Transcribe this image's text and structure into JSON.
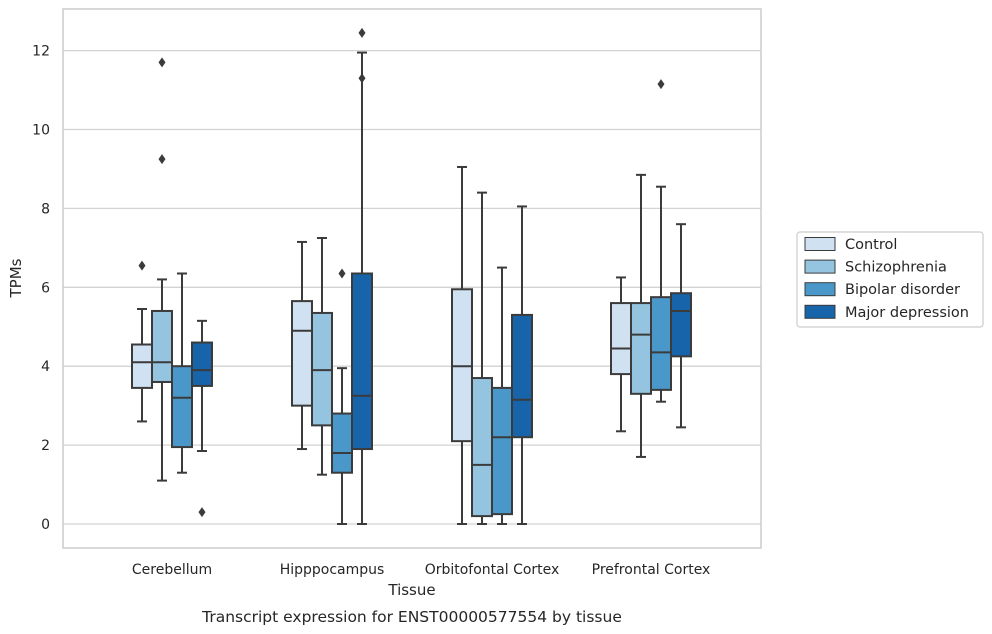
{
  "chart_data": {
    "type": "boxplot",
    "xlabel": "Tissue",
    "ylabel": "TPMs",
    "caption": "Transcript expression for ENST00000577554 by tissue",
    "ylim": [
      -0.6,
      13.0
    ],
    "yticks": [
      0,
      2,
      4,
      6,
      8,
      10,
      12
    ],
    "grid": true,
    "legend_position": "right",
    "categories": [
      "Cerebellum",
      "Hipppocampus",
      "Orbitofontal Cortex",
      "Prefrontal Cortex"
    ],
    "series": [
      {
        "name": "Control",
        "color": "#d0e1f2",
        "boxes": [
          {
            "whisker_low": 2.6,
            "q1": 3.45,
            "median": 4.1,
            "q3": 4.55,
            "whisker_high": 5.45,
            "outliers": [
              6.55
            ]
          },
          {
            "whisker_low": 1.9,
            "q1": 3.0,
            "median": 4.9,
            "q3": 5.65,
            "whisker_high": 7.15,
            "outliers": []
          },
          {
            "whisker_low": 0.0,
            "q1": 2.1,
            "median": 4.0,
            "q3": 5.95,
            "whisker_high": 9.05,
            "outliers": []
          },
          {
            "whisker_low": 2.35,
            "q1": 3.8,
            "median": 4.45,
            "q3": 5.6,
            "whisker_high": 6.25,
            "outliers": []
          }
        ]
      },
      {
        "name": "Schizophrenia",
        "color": "#94c4df",
        "boxes": [
          {
            "whisker_low": 1.1,
            "q1": 3.6,
            "median": 4.1,
            "q3": 5.4,
            "whisker_high": 6.2,
            "outliers": [
              9.25,
              11.7
            ]
          },
          {
            "whisker_low": 1.25,
            "q1": 2.5,
            "median": 3.9,
            "q3": 5.35,
            "whisker_high": 7.25,
            "outliers": []
          },
          {
            "whisker_low": 0.0,
            "q1": 0.2,
            "median": 1.5,
            "q3": 3.7,
            "whisker_high": 8.4,
            "outliers": []
          },
          {
            "whisker_low": 1.7,
            "q1": 3.3,
            "median": 4.8,
            "q3": 5.6,
            "whisker_high": 8.85,
            "outliers": []
          }
        ]
      },
      {
        "name": "Bipolar disorder",
        "color": "#4a98c9",
        "boxes": [
          {
            "whisker_low": 1.3,
            "q1": 1.95,
            "median": 3.2,
            "q3": 4.0,
            "whisker_high": 6.35,
            "outliers": []
          },
          {
            "whisker_low": 0.0,
            "q1": 1.3,
            "median": 1.8,
            "q3": 2.8,
            "whisker_high": 3.95,
            "outliers": [
              6.35
            ]
          },
          {
            "whisker_low": 0.0,
            "q1": 0.25,
            "median": 2.2,
            "q3": 3.45,
            "whisker_high": 6.5,
            "outliers": []
          },
          {
            "whisker_low": 3.1,
            "q1": 3.4,
            "median": 4.35,
            "q3": 5.75,
            "whisker_high": 8.55,
            "outliers": [
              11.15
            ]
          }
        ]
      },
      {
        "name": "Major depression",
        "color": "#1764ab",
        "boxes": [
          {
            "whisker_low": 1.85,
            "q1": 3.5,
            "median": 3.9,
            "q3": 4.6,
            "whisker_high": 5.15,
            "outliers": [
              0.3
            ]
          },
          {
            "whisker_low": 0.0,
            "q1": 1.9,
            "median": 3.25,
            "q3": 6.35,
            "whisker_high": 11.95,
            "outliers": [
              12.45,
              11.3
            ]
          },
          {
            "whisker_low": 0.0,
            "q1": 2.2,
            "median": 3.15,
            "q3": 5.3,
            "whisker_high": 8.05,
            "outliers": []
          },
          {
            "whisker_low": 2.45,
            "q1": 4.25,
            "median": 5.4,
            "q3": 5.85,
            "whisker_high": 7.6,
            "outliers": []
          }
        ]
      }
    ]
  }
}
